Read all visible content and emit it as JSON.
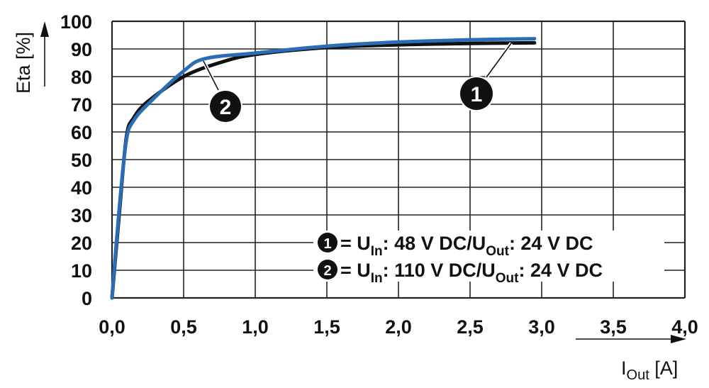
{
  "chart_data": {
    "type": "line",
    "title": "",
    "xlabel": "I_Out [A]",
    "ylabel": "Eta [%]",
    "xlim": [
      0,
      4.0
    ],
    "ylim": [
      0,
      100
    ],
    "grid": true,
    "x_ticks": [
      "0,0",
      "0,5",
      "1,0",
      "1,5",
      "2,0",
      "2,5",
      "3,0",
      "3,5",
      "4,0"
    ],
    "y_ticks": [
      "0",
      "10",
      "20",
      "30",
      "40",
      "50",
      "60",
      "70",
      "80",
      "90",
      "100"
    ],
    "legend_position": "lower right (inside plot)",
    "series": [
      {
        "id": "1",
        "name": "U_In: 48 V DC/U_Out: 24 V DC",
        "color": "#111111",
        "x": [
          0,
          0.05,
          0.1,
          0.15,
          0.25,
          0.5,
          0.75,
          1.0,
          1.5,
          2.0,
          2.5,
          2.95
        ],
        "y": [
          0,
          30,
          58,
          65,
          71,
          80,
          85,
          88,
          90.5,
          91.5,
          92,
          92.2
        ]
      },
      {
        "id": "2",
        "name": "U_In: 110 V DC/U_Out: 24 V DC",
        "color": "#2a6db5",
        "x": [
          0,
          0.05,
          0.1,
          0.15,
          0.25,
          0.5,
          0.65,
          1.0,
          1.5,
          2.0,
          2.5,
          2.95
        ],
        "y": [
          0,
          32,
          57,
          64,
          70,
          82,
          86.5,
          88.5,
          91,
          92.5,
          93.3,
          93.7
        ]
      }
    ],
    "annotations": [
      {
        "label": "1",
        "points_to_series": "1",
        "at_x": 2.8
      },
      {
        "label": "2",
        "points_to_series": "2",
        "at_x": 0.65
      }
    ]
  },
  "axis": {
    "y_title": "Eta [%]",
    "x_title_main": "I",
    "x_title_sub": "Out",
    "x_title_unit": " [A]"
  },
  "legend": [
    {
      "badge": "1",
      "eq": " = U",
      "sub_in": "In",
      "mid": ": 48 V DC/U",
      "sub_out": "Out",
      "end": ": 24 V DC"
    },
    {
      "badge": "2",
      "eq": " = U",
      "sub_in": "In",
      "mid": ": 110 V DC/U",
      "sub_out": "Out",
      "end": ": 24 V DC"
    }
  ],
  "callouts": {
    "one": "1",
    "two": "2"
  }
}
